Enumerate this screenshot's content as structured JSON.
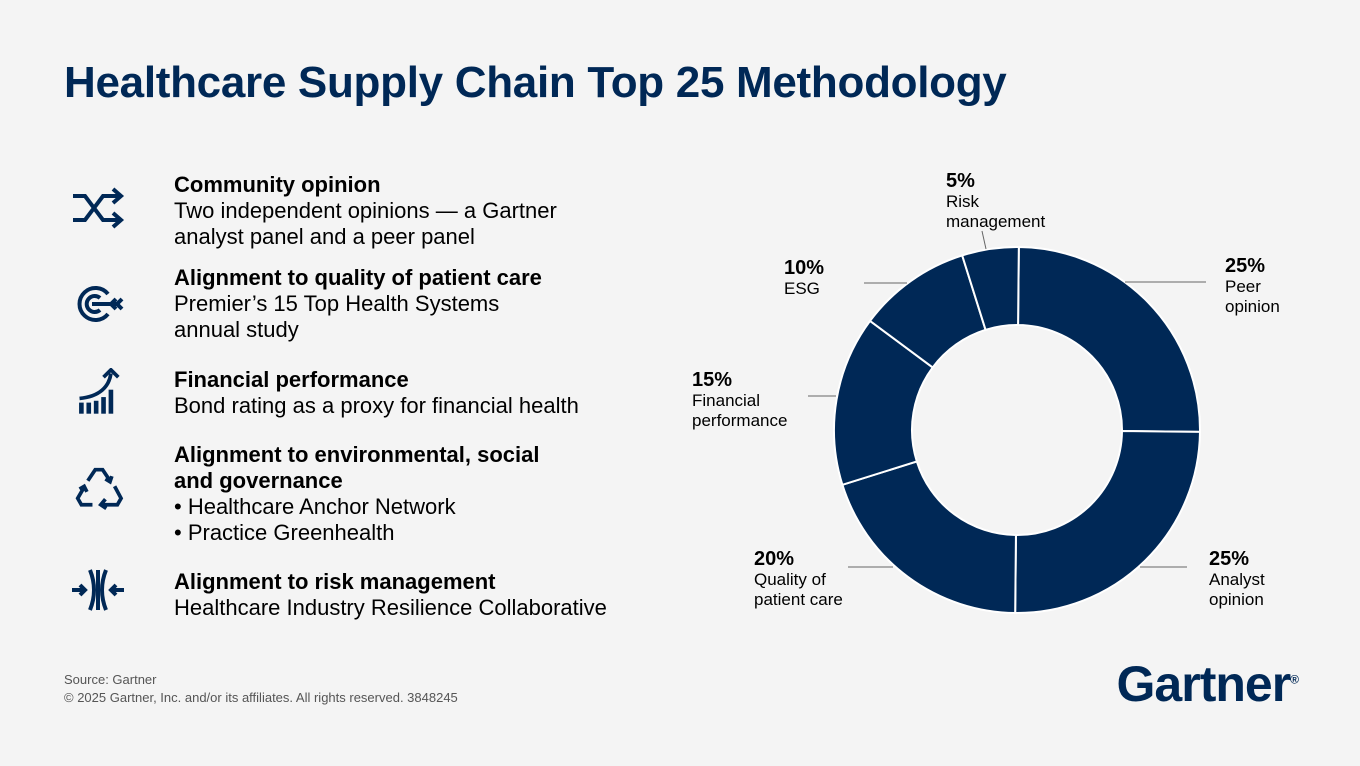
{
  "title": "Healthcare Supply Chain Top 25 Methodology",
  "criteria": [
    {
      "icon": "shuffle-icon",
      "title": "Community opinion",
      "lines": [
        "Two independent opinions — a Gartner",
        "analyst panel and a peer panel"
      ]
    },
    {
      "icon": "target-arrow-icon",
      "title": "Alignment to quality of patient care",
      "lines": [
        "Premier’s 15 Top Health Systems",
        "annual study"
      ]
    },
    {
      "icon": "growth-chart-icon",
      "title": "Financial performance",
      "lines": [
        "Bond rating as a proxy for financial health"
      ]
    },
    {
      "icon": "recycle-icon",
      "title_lines": [
        "Alignment to environmental, social",
        "and governance"
      ],
      "lines": [
        "• Healthcare Anchor Network",
        "• Practice Greenhealth"
      ]
    },
    {
      "icon": "resilience-icon",
      "title": "Alignment to risk management",
      "lines": [
        "Healthcare Industry Resilience Collaborative"
      ]
    }
  ],
  "chart_data": {
    "type": "pie",
    "variant": "donut",
    "unit": "%",
    "direction": "clockwise from top",
    "slices": [
      {
        "label": "Peer opinion",
        "value": 25,
        "label_text": "25%"
      },
      {
        "label": "Analyst opinion",
        "value": 25,
        "label_text": "25%"
      },
      {
        "label": "Quality of patient care",
        "value": 20,
        "label_text": "20%"
      },
      {
        "label": "Financial performance",
        "value": 15,
        "label_text": "15%"
      },
      {
        "label": "ESG",
        "value": 10,
        "label_text": "10%"
      },
      {
        "label": "Risk management",
        "value": 5,
        "label_text": "5%"
      }
    ],
    "color": "#002856"
  },
  "footer": {
    "source": "Source: Gartner",
    "copyright": "© 2025 Gartner, Inc. and/or its affiliates. All rights reserved. 3848245"
  },
  "logo": "Gartner",
  "colors": {
    "brand": "#002856",
    "background": "#f4f4f4"
  }
}
